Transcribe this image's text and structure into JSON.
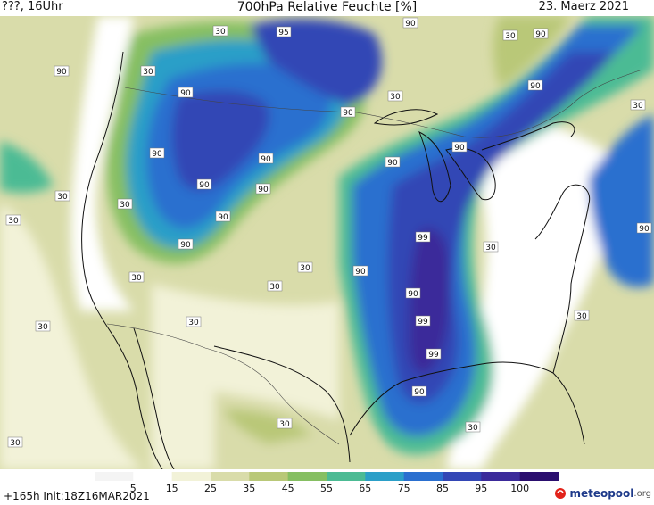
{
  "header": {
    "left": "???, 16Uhr",
    "title": "700hPa Relative Feuchte [%]",
    "right": "23. Maerz 2021"
  },
  "legend": {
    "ticks": [
      "5",
      "15",
      "25",
      "35",
      "45",
      "55",
      "65",
      "75",
      "85",
      "95",
      "100"
    ],
    "colors": [
      "#f4f4f4",
      "#ffffff",
      "#f2f2d8",
      "#d9dcaa",
      "#b9c878",
      "#86bf62",
      "#4cbb94",
      "#2b9fc8",
      "#2a6fcf",
      "#3346b5",
      "#3b2a9a",
      "#2a0e6e"
    ]
  },
  "footer": {
    "init": "+165h  Init:18Z16MAR2021",
    "logo_main": "meteopool",
    "logo_tld": ".org"
  },
  "map": {
    "icon": "meteopool-logo-icon",
    "contour_labels": [
      {
        "text": "30",
        "id": "l1"
      },
      {
        "text": "95",
        "id": "l2"
      },
      {
        "text": "90",
        "id": "l3"
      },
      {
        "text": "30",
        "id": "l4"
      },
      {
        "text": "90",
        "id": "l5"
      },
      {
        "text": "90",
        "id": "l6"
      },
      {
        "text": "30",
        "id": "l7"
      },
      {
        "text": "90",
        "id": "l8"
      },
      {
        "text": "90",
        "id": "l9"
      },
      {
        "text": "30",
        "id": "l10"
      },
      {
        "text": "90",
        "id": "l11"
      },
      {
        "text": "30",
        "id": "l12"
      },
      {
        "text": "90",
        "id": "l13"
      },
      {
        "text": "90",
        "id": "l14"
      },
      {
        "text": "30",
        "id": "l15"
      },
      {
        "text": "90",
        "id": "l16"
      },
      {
        "text": "90",
        "id": "l17"
      },
      {
        "text": "90",
        "id": "l18"
      },
      {
        "text": "30",
        "id": "l19"
      },
      {
        "text": "90",
        "id": "l20"
      },
      {
        "text": "90",
        "id": "l21"
      },
      {
        "text": "90",
        "id": "l22"
      },
      {
        "text": "30",
        "id": "l23"
      },
      {
        "text": "99",
        "id": "l24"
      },
      {
        "text": "30",
        "id": "l25"
      },
      {
        "text": "30",
        "id": "l26"
      },
      {
        "text": "30",
        "id": "l27"
      },
      {
        "text": "90",
        "id": "l28"
      },
      {
        "text": "90",
        "id": "l29"
      },
      {
        "text": "30",
        "id": "l30"
      },
      {
        "text": "30",
        "id": "l31"
      },
      {
        "text": "99",
        "id": "l32"
      },
      {
        "text": "30",
        "id": "l33"
      },
      {
        "text": "99",
        "id": "l34"
      },
      {
        "text": "90",
        "id": "l35"
      },
      {
        "text": "30",
        "id": "l36"
      },
      {
        "text": "30",
        "id": "l37"
      },
      {
        "text": "30",
        "id": "l38"
      },
      {
        "text": "90",
        "id": "l39"
      },
      {
        "text": "30",
        "id": "l40"
      }
    ]
  }
}
